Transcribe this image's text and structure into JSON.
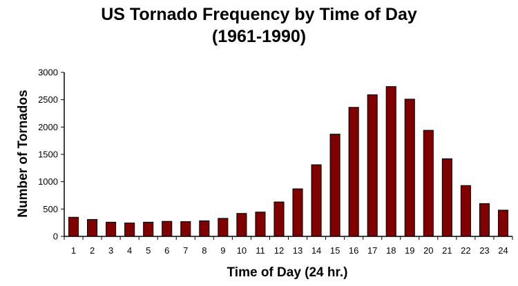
{
  "chart_data": {
    "type": "bar",
    "title": "US Tornado Frequency by Time of Day",
    "subtitle": "(1961-1990)",
    "xlabel": "Time of Day (24 hr.)",
    "ylabel": "Number of Tornados",
    "categories": [
      "1",
      "2",
      "3",
      "4",
      "5",
      "6",
      "7",
      "8",
      "9",
      "10",
      "11",
      "12",
      "13",
      "14",
      "15",
      "16",
      "17",
      "18",
      "19",
      "20",
      "21",
      "22",
      "23",
      "24"
    ],
    "values": [
      350,
      310,
      260,
      245,
      260,
      275,
      270,
      285,
      330,
      420,
      445,
      630,
      870,
      1310,
      1870,
      2360,
      2590,
      2740,
      2510,
      1940,
      1420,
      930,
      600,
      480
    ],
    "ylim": [
      0,
      3000
    ],
    "yticks": [
      0,
      500,
      1000,
      1500,
      2000,
      2500,
      3000
    ],
    "grid": false,
    "bar_color": "#800000"
  }
}
